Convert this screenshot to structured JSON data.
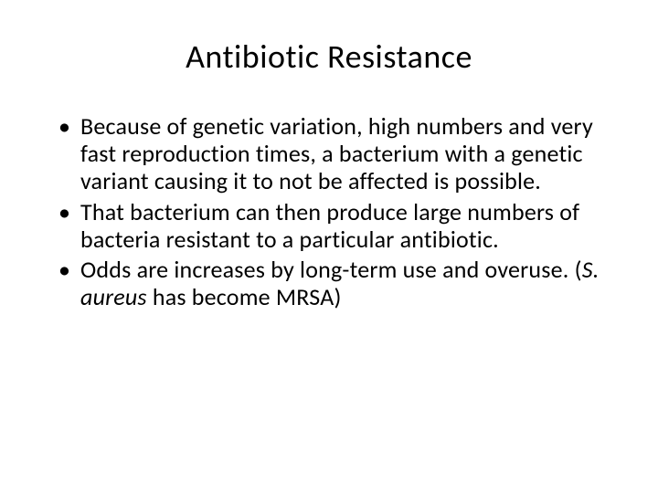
{
  "title": "Antibiotic Resistance",
  "bullets": [
    {
      "text": "Because of genetic variation, high numbers and very fast reproduction times, a bacterium with a genetic variant causing it to not be affected is possible."
    },
    {
      "text": "That bacterium can then produce large numbers of bacteria resistant to a particular antibiotic."
    },
    {
      "prefix": "Odds are increases by long-term use and overuse. (",
      "italic": "S. aureus",
      "suffix": " has become MRSA)"
    }
  ],
  "styling": {
    "background_color": "#ffffff",
    "text_color": "#000000",
    "title_fontsize": 36,
    "body_fontsize": 26,
    "font_family": "Calibri"
  }
}
